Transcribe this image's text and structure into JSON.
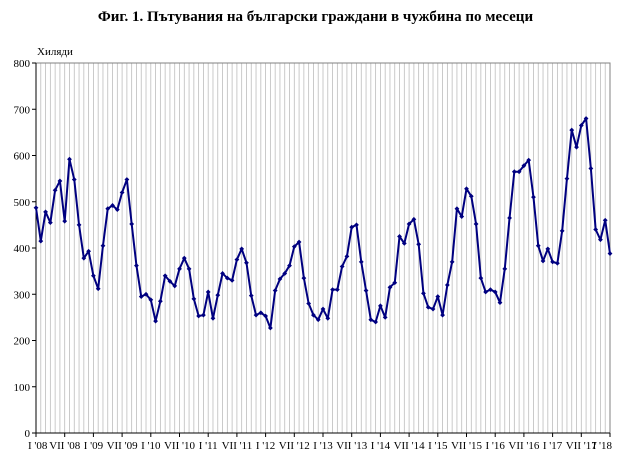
{
  "chart_data": {
    "type": "line",
    "title": "Фиг. 1. Пътувания на български граждани в чужбина по месеци",
    "ylabel": "Хиляди",
    "xlabel": "",
    "ylim": [
      0,
      800
    ],
    "yticks": [
      0,
      100,
      200,
      300,
      400,
      500,
      600,
      700,
      800
    ],
    "grid": true,
    "legend": "none",
    "x_start": "2008-01",
    "x_end": "2018-01",
    "xtick_labels": [
      {
        "month_index": 0,
        "label": "I '08"
      },
      {
        "month_index": 6,
        "label": "VII '08"
      },
      {
        "month_index": 12,
        "label": "I '09"
      },
      {
        "month_index": 18,
        "label": "VII '09"
      },
      {
        "month_index": 24,
        "label": "I '10"
      },
      {
        "month_index": 30,
        "label": "VII '10"
      },
      {
        "month_index": 36,
        "label": "I '11"
      },
      {
        "month_index": 42,
        "label": "VII '11"
      },
      {
        "month_index": 48,
        "label": "I '12"
      },
      {
        "month_index": 54,
        "label": "VII '12"
      },
      {
        "month_index": 60,
        "label": "I '13"
      },
      {
        "month_index": 66,
        "label": "VII '13"
      },
      {
        "month_index": 72,
        "label": "I '14"
      },
      {
        "month_index": 78,
        "label": "VII '14"
      },
      {
        "month_index": 84,
        "label": "I '15"
      },
      {
        "month_index": 90,
        "label": "VII '15"
      },
      {
        "month_index": 96,
        "label": "I '16"
      },
      {
        "month_index": 102,
        "label": "VII '16"
      },
      {
        "month_index": 108,
        "label": "I '17"
      },
      {
        "month_index": 114,
        "label": "VII '17"
      },
      {
        "month_index": 120,
        "label": "I '18"
      }
    ],
    "series": [
      {
        "color": "#000080",
        "values": [
          487,
          415,
          478,
          455,
          525,
          545,
          458,
          592,
          548,
          450,
          378,
          393,
          340,
          312,
          405,
          485,
          492,
          483,
          520,
          548,
          452,
          362,
          295,
          300,
          288,
          242,
          285,
          340,
          328,
          318,
          355,
          378,
          355,
          290,
          253,
          255,
          305,
          248,
          298,
          345,
          335,
          330,
          375,
          398,
          368,
          297,
          255,
          260,
          253,
          227,
          308,
          333,
          345,
          362,
          403,
          413,
          335,
          280,
          255,
          245,
          268,
          248,
          310,
          310,
          360,
          382,
          445,
          450,
          370,
          308,
          245,
          240,
          275,
          250,
          315,
          325,
          425,
          410,
          452,
          462,
          408,
          302,
          272,
          268,
          295,
          255,
          320,
          370,
          485,
          468,
          528,
          512,
          452,
          335,
          305,
          310,
          305,
          282,
          355,
          465,
          565,
          565,
          578,
          590,
          510,
          405,
          372,
          398,
          370,
          367,
          437,
          550,
          655,
          618,
          665,
          680,
          572,
          440,
          418,
          460,
          388
        ]
      }
    ]
  }
}
